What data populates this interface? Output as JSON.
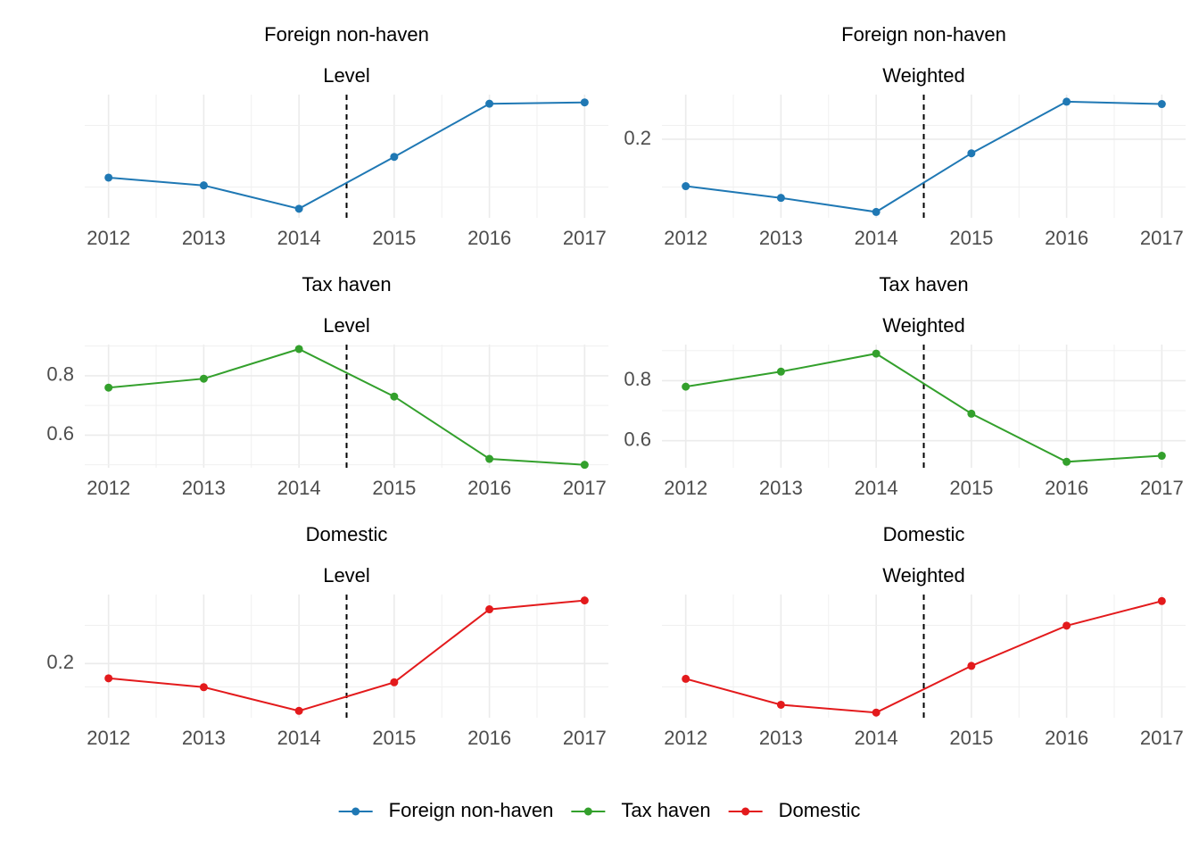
{
  "chart_data": [
    {
      "type": "line",
      "title": "Foreign non-haven",
      "subtitle": "Level",
      "x": [
        2012,
        2013,
        2014,
        2015,
        2016,
        2017
      ],
      "values": [
        0.176,
        0.17,
        0.152,
        0.192,
        0.233,
        0.234
      ],
      "series_key": "foreign",
      "ylim": [
        0.145,
        0.24
      ],
      "yticks": [],
      "vline": 2014.5
    },
    {
      "type": "line",
      "title": "Foreign non-haven",
      "subtitle": "Weighted",
      "x": [
        2012,
        2013,
        2014,
        2015,
        2016,
        2017
      ],
      "values": [
        0.16,
        0.15,
        0.138,
        0.188,
        0.232,
        0.23
      ],
      "series_key": "foreign",
      "ylim": [
        0.133,
        0.238
      ],
      "yticks": [
        0.2
      ],
      "vline": 2014.5
    },
    {
      "type": "line",
      "title": "Tax haven",
      "subtitle": "Level",
      "x": [
        2012,
        2013,
        2014,
        2015,
        2016,
        2017
      ],
      "values": [
        0.76,
        0.79,
        0.89,
        0.73,
        0.52,
        0.5
      ],
      "series_key": "tax_haven",
      "ylim": [
        0.49,
        0.905
      ],
      "yticks": [
        0.6,
        0.8
      ],
      "vline": 2014.5
    },
    {
      "type": "line",
      "title": "Tax haven",
      "subtitle": "Weighted",
      "x": [
        2012,
        2013,
        2014,
        2015,
        2016,
        2017
      ],
      "values": [
        0.78,
        0.83,
        0.89,
        0.69,
        0.53,
        0.55
      ],
      "series_key": "tax_haven",
      "ylim": [
        0.51,
        0.92
      ],
      "yticks": [
        0.6,
        0.8
      ],
      "vline": 2014.5
    },
    {
      "type": "line",
      "title": "Domestic",
      "subtitle": "Level",
      "x": [
        2012,
        2013,
        2014,
        2015,
        2016,
        2017
      ],
      "values": [
        0.185,
        0.176,
        0.152,
        0.181,
        0.255,
        0.264
      ],
      "series_key": "domestic",
      "ylim": [
        0.145,
        0.27
      ],
      "yticks": [
        0.2
      ],
      "vline": 2014.5
    },
    {
      "type": "line",
      "title": "Domestic",
      "subtitle": "Weighted",
      "x": [
        2012,
        2013,
        2014,
        2015,
        2016,
        2017
      ],
      "values": [
        0.18,
        0.16,
        0.154,
        0.19,
        0.221,
        0.24
      ],
      "series_key": "domestic",
      "ylim": [
        0.15,
        0.245
      ],
      "yticks": [],
      "vline": 2014.5
    }
  ],
  "series": {
    "foreign": {
      "name": "Foreign non-haven",
      "color": "#1f78b4"
    },
    "tax_haven": {
      "name": "Tax haven",
      "color": "#33a02c"
    },
    "domestic": {
      "name": "Domestic",
      "color": "#e31a1c"
    }
  },
  "legend": {
    "position": "bottom",
    "order": [
      "foreign",
      "tax_haven",
      "domestic"
    ]
  },
  "x_ticks": [
    2012,
    2013,
    2014,
    2015,
    2016,
    2017
  ],
  "xlim": [
    2011.75,
    2017.25
  ],
  "grid": true
}
